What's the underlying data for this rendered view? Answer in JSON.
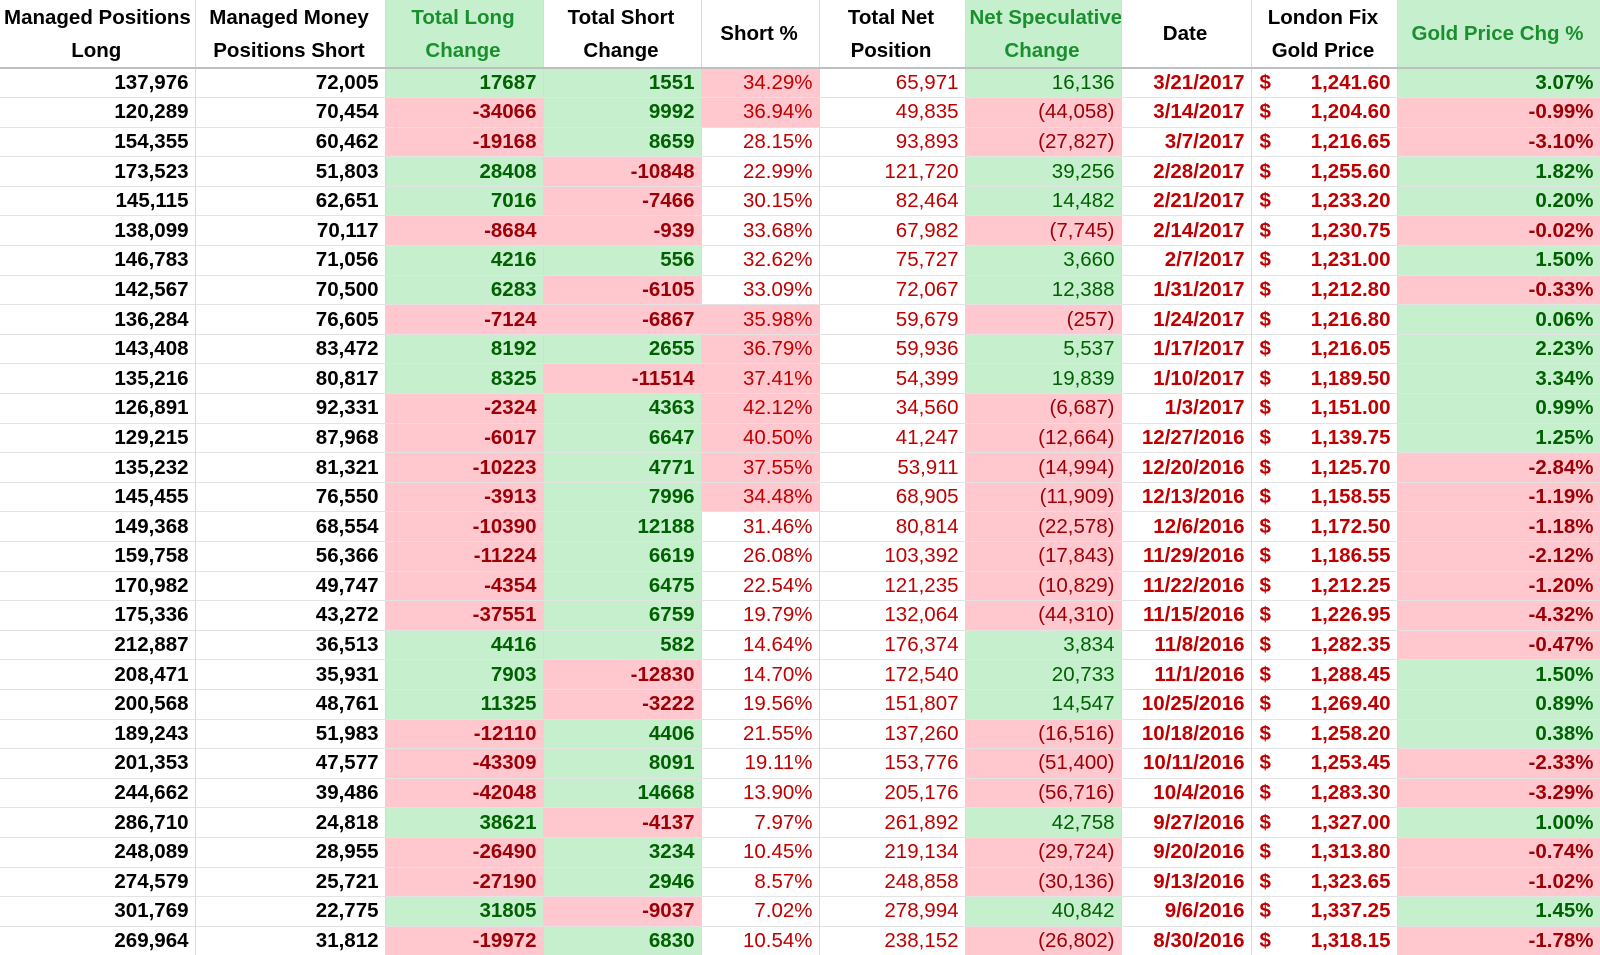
{
  "colors": {
    "positive_fill": "#c6efce",
    "positive_text": "#006100",
    "negative_fill": "#ffc7ce",
    "negative_text": "#9c0006",
    "accent_red": "#c00000"
  },
  "headers": {
    "long": [
      "Managed Positions",
      "Long"
    ],
    "short": [
      "Managed Money",
      "Positions Short"
    ],
    "long_change": [
      "Total Long",
      "Change"
    ],
    "short_change": [
      "Total Short",
      "Change"
    ],
    "short_pct": [
      "Short %"
    ],
    "net_position": [
      "Total Net",
      "Position"
    ],
    "net_spec_change": [
      "Net Speculative",
      "Change"
    ],
    "date": [
      "Date"
    ],
    "gold_price": [
      "London Fix",
      "Gold Price"
    ],
    "gold_chg": [
      "Gold Price Chg %"
    ]
  },
  "currency_symbol": "$",
  "rows": [
    {
      "long": "137,976",
      "short": "72,005",
      "long_change": "17687",
      "short_change": "1551",
      "short_pct": "34.29%",
      "net": "65,971",
      "net_chg": "16,136",
      "date": "3/21/2017",
      "price": "1,241.60",
      "gold_chg": "3.07%"
    },
    {
      "long": "120,289",
      "short": "70,454",
      "long_change": "-34066",
      "short_change": "9992",
      "short_pct": "36.94%",
      "net": "49,835",
      "net_chg": "(44,058)",
      "date": "3/14/2017",
      "price": "1,204.60",
      "gold_chg": "-0.99%"
    },
    {
      "long": "154,355",
      "short": "60,462",
      "long_change": "-19168",
      "short_change": "8659",
      "short_pct": "28.15%",
      "net": "93,893",
      "net_chg": "(27,827)",
      "date": "3/7/2017",
      "price": "1,216.65",
      "gold_chg": "-3.10%"
    },
    {
      "long": "173,523",
      "short": "51,803",
      "long_change": "28408",
      "short_change": "-10848",
      "short_pct": "22.99%",
      "net": "121,720",
      "net_chg": "39,256",
      "date": "2/28/2017",
      "price": "1,255.60",
      "gold_chg": "1.82%"
    },
    {
      "long": "145,115",
      "short": "62,651",
      "long_change": "7016",
      "short_change": "-7466",
      "short_pct": "30.15%",
      "net": "82,464",
      "net_chg": "14,482",
      "date": "2/21/2017",
      "price": "1,233.20",
      "gold_chg": "0.20%"
    },
    {
      "long": "138,099",
      "short": "70,117",
      "long_change": "-8684",
      "short_change": "-939",
      "short_pct": "33.68%",
      "net": "67,982",
      "net_chg": "(7,745)",
      "date": "2/14/2017",
      "price": "1,230.75",
      "gold_chg": "-0.02%"
    },
    {
      "long": "146,783",
      "short": "71,056",
      "long_change": "4216",
      "short_change": "556",
      "short_pct": "32.62%",
      "net": "75,727",
      "net_chg": "3,660",
      "date": "2/7/2017",
      "price": "1,231.00",
      "gold_chg": "1.50%"
    },
    {
      "long": "142,567",
      "short": "70,500",
      "long_change": "6283",
      "short_change": "-6105",
      "short_pct": "33.09%",
      "net": "72,067",
      "net_chg": "12,388",
      "date": "1/31/2017",
      "price": "1,212.80",
      "gold_chg": "-0.33%"
    },
    {
      "long": "136,284",
      "short": "76,605",
      "long_change": "-7124",
      "short_change": "-6867",
      "short_pct": "35.98%",
      "net": "59,679",
      "net_chg": "(257)",
      "date": "1/24/2017",
      "price": "1,216.80",
      "gold_chg": "0.06%"
    },
    {
      "long": "143,408",
      "short": "83,472",
      "long_change": "8192",
      "short_change": "2655",
      "short_pct": "36.79%",
      "net": "59,936",
      "net_chg": "5,537",
      "date": "1/17/2017",
      "price": "1,216.05",
      "gold_chg": "2.23%"
    },
    {
      "long": "135,216",
      "short": "80,817",
      "long_change": "8325",
      "short_change": "-11514",
      "short_pct": "37.41%",
      "net": "54,399",
      "net_chg": "19,839",
      "date": "1/10/2017",
      "price": "1,189.50",
      "gold_chg": "3.34%"
    },
    {
      "long": "126,891",
      "short": "92,331",
      "long_change": "-2324",
      "short_change": "4363",
      "short_pct": "42.12%",
      "net": "34,560",
      "net_chg": "(6,687)",
      "date": "1/3/2017",
      "price": "1,151.00",
      "gold_chg": "0.99%"
    },
    {
      "long": "129,215",
      "short": "87,968",
      "long_change": "-6017",
      "short_change": "6647",
      "short_pct": "40.50%",
      "net": "41,247",
      "net_chg": "(12,664)",
      "date": "12/27/2016",
      "price": "1,139.75",
      "gold_chg": "1.25%"
    },
    {
      "long": "135,232",
      "short": "81,321",
      "long_change": "-10223",
      "short_change": "4771",
      "short_pct": "37.55%",
      "net": "53,911",
      "net_chg": "(14,994)",
      "date": "12/20/2016",
      "price": "1,125.70",
      "gold_chg": "-2.84%"
    },
    {
      "long": "145,455",
      "short": "76,550",
      "long_change": "-3913",
      "short_change": "7996",
      "short_pct": "34.48%",
      "net": "68,905",
      "net_chg": "(11,909)",
      "date": "12/13/2016",
      "price": "1,158.55",
      "gold_chg": "-1.19%"
    },
    {
      "long": "149,368",
      "short": "68,554",
      "long_change": "-10390",
      "short_change": "12188",
      "short_pct": "31.46%",
      "net": "80,814",
      "net_chg": "(22,578)",
      "date": "12/6/2016",
      "price": "1,172.50",
      "gold_chg": "-1.18%"
    },
    {
      "long": "159,758",
      "short": "56,366",
      "long_change": "-11224",
      "short_change": "6619",
      "short_pct": "26.08%",
      "net": "103,392",
      "net_chg": "(17,843)",
      "date": "11/29/2016",
      "price": "1,186.55",
      "gold_chg": "-2.12%"
    },
    {
      "long": "170,982",
      "short": "49,747",
      "long_change": "-4354",
      "short_change": "6475",
      "short_pct": "22.54%",
      "net": "121,235",
      "net_chg": "(10,829)",
      "date": "11/22/2016",
      "price": "1,212.25",
      "gold_chg": "-1.20%"
    },
    {
      "long": "175,336",
      "short": "43,272",
      "long_change": "-37551",
      "short_change": "6759",
      "short_pct": "19.79%",
      "net": "132,064",
      "net_chg": "(44,310)",
      "date": "11/15/2016",
      "price": "1,226.95",
      "gold_chg": "-4.32%"
    },
    {
      "long": "212,887",
      "short": "36,513",
      "long_change": "4416",
      "short_change": "582",
      "short_pct": "14.64%",
      "net": "176,374",
      "net_chg": "3,834",
      "date": "11/8/2016",
      "price": "1,282.35",
      "gold_chg": "-0.47%"
    },
    {
      "long": "208,471",
      "short": "35,931",
      "long_change": "7903",
      "short_change": "-12830",
      "short_pct": "14.70%",
      "net": "172,540",
      "net_chg": "20,733",
      "date": "11/1/2016",
      "price": "1,288.45",
      "gold_chg": "1.50%"
    },
    {
      "long": "200,568",
      "short": "48,761",
      "long_change": "11325",
      "short_change": "-3222",
      "short_pct": "19.56%",
      "net": "151,807",
      "net_chg": "14,547",
      "date": "10/25/2016",
      "price": "1,269.40",
      "gold_chg": "0.89%"
    },
    {
      "long": "189,243",
      "short": "51,983",
      "long_change": "-12110",
      "short_change": "4406",
      "short_pct": "21.55%",
      "net": "137,260",
      "net_chg": "(16,516)",
      "date": "10/18/2016",
      "price": "1,258.20",
      "gold_chg": "0.38%"
    },
    {
      "long": "201,353",
      "short": "47,577",
      "long_change": "-43309",
      "short_change": "8091",
      "short_pct": "19.11%",
      "net": "153,776",
      "net_chg": "(51,400)",
      "date": "10/11/2016",
      "price": "1,253.45",
      "gold_chg": "-2.33%"
    },
    {
      "long": "244,662",
      "short": "39,486",
      "long_change": "-42048",
      "short_change": "14668",
      "short_pct": "13.90%",
      "net": "205,176",
      "net_chg": "(56,716)",
      "date": "10/4/2016",
      "price": "1,283.30",
      "gold_chg": "-3.29%"
    },
    {
      "long": "286,710",
      "short": "24,818",
      "long_change": "38621",
      "short_change": "-4137",
      "short_pct": "7.97%",
      "net": "261,892",
      "net_chg": "42,758",
      "date": "9/27/2016",
      "price": "1,327.00",
      "gold_chg": "1.00%"
    },
    {
      "long": "248,089",
      "short": "28,955",
      "long_change": "-26490",
      "short_change": "3234",
      "short_pct": "10.45%",
      "net": "219,134",
      "net_chg": "(29,724)",
      "date": "9/20/2016",
      "price": "1,313.80",
      "gold_chg": "-0.74%"
    },
    {
      "long": "274,579",
      "short": "25,721",
      "long_change": "-27190",
      "short_change": "2946",
      "short_pct": "8.57%",
      "net": "248,858",
      "net_chg": "(30,136)",
      "date": "9/13/2016",
      "price": "1,323.65",
      "gold_chg": "-1.02%"
    },
    {
      "long": "301,769",
      "short": "22,775",
      "long_change": "31805",
      "short_change": "-9037",
      "short_pct": "7.02%",
      "net": "278,994",
      "net_chg": "40,842",
      "date": "9/6/2016",
      "price": "1,337.25",
      "gold_chg": "1.45%"
    },
    {
      "long": "269,964",
      "short": "31,812",
      "long_change": "-19972",
      "short_change": "6830",
      "short_pct": "10.54%",
      "net": "238,152",
      "net_chg": "(26,802)",
      "date": "8/30/2016",
      "price": "1,318.15",
      "gold_chg": "-1.78%"
    }
  ]
}
